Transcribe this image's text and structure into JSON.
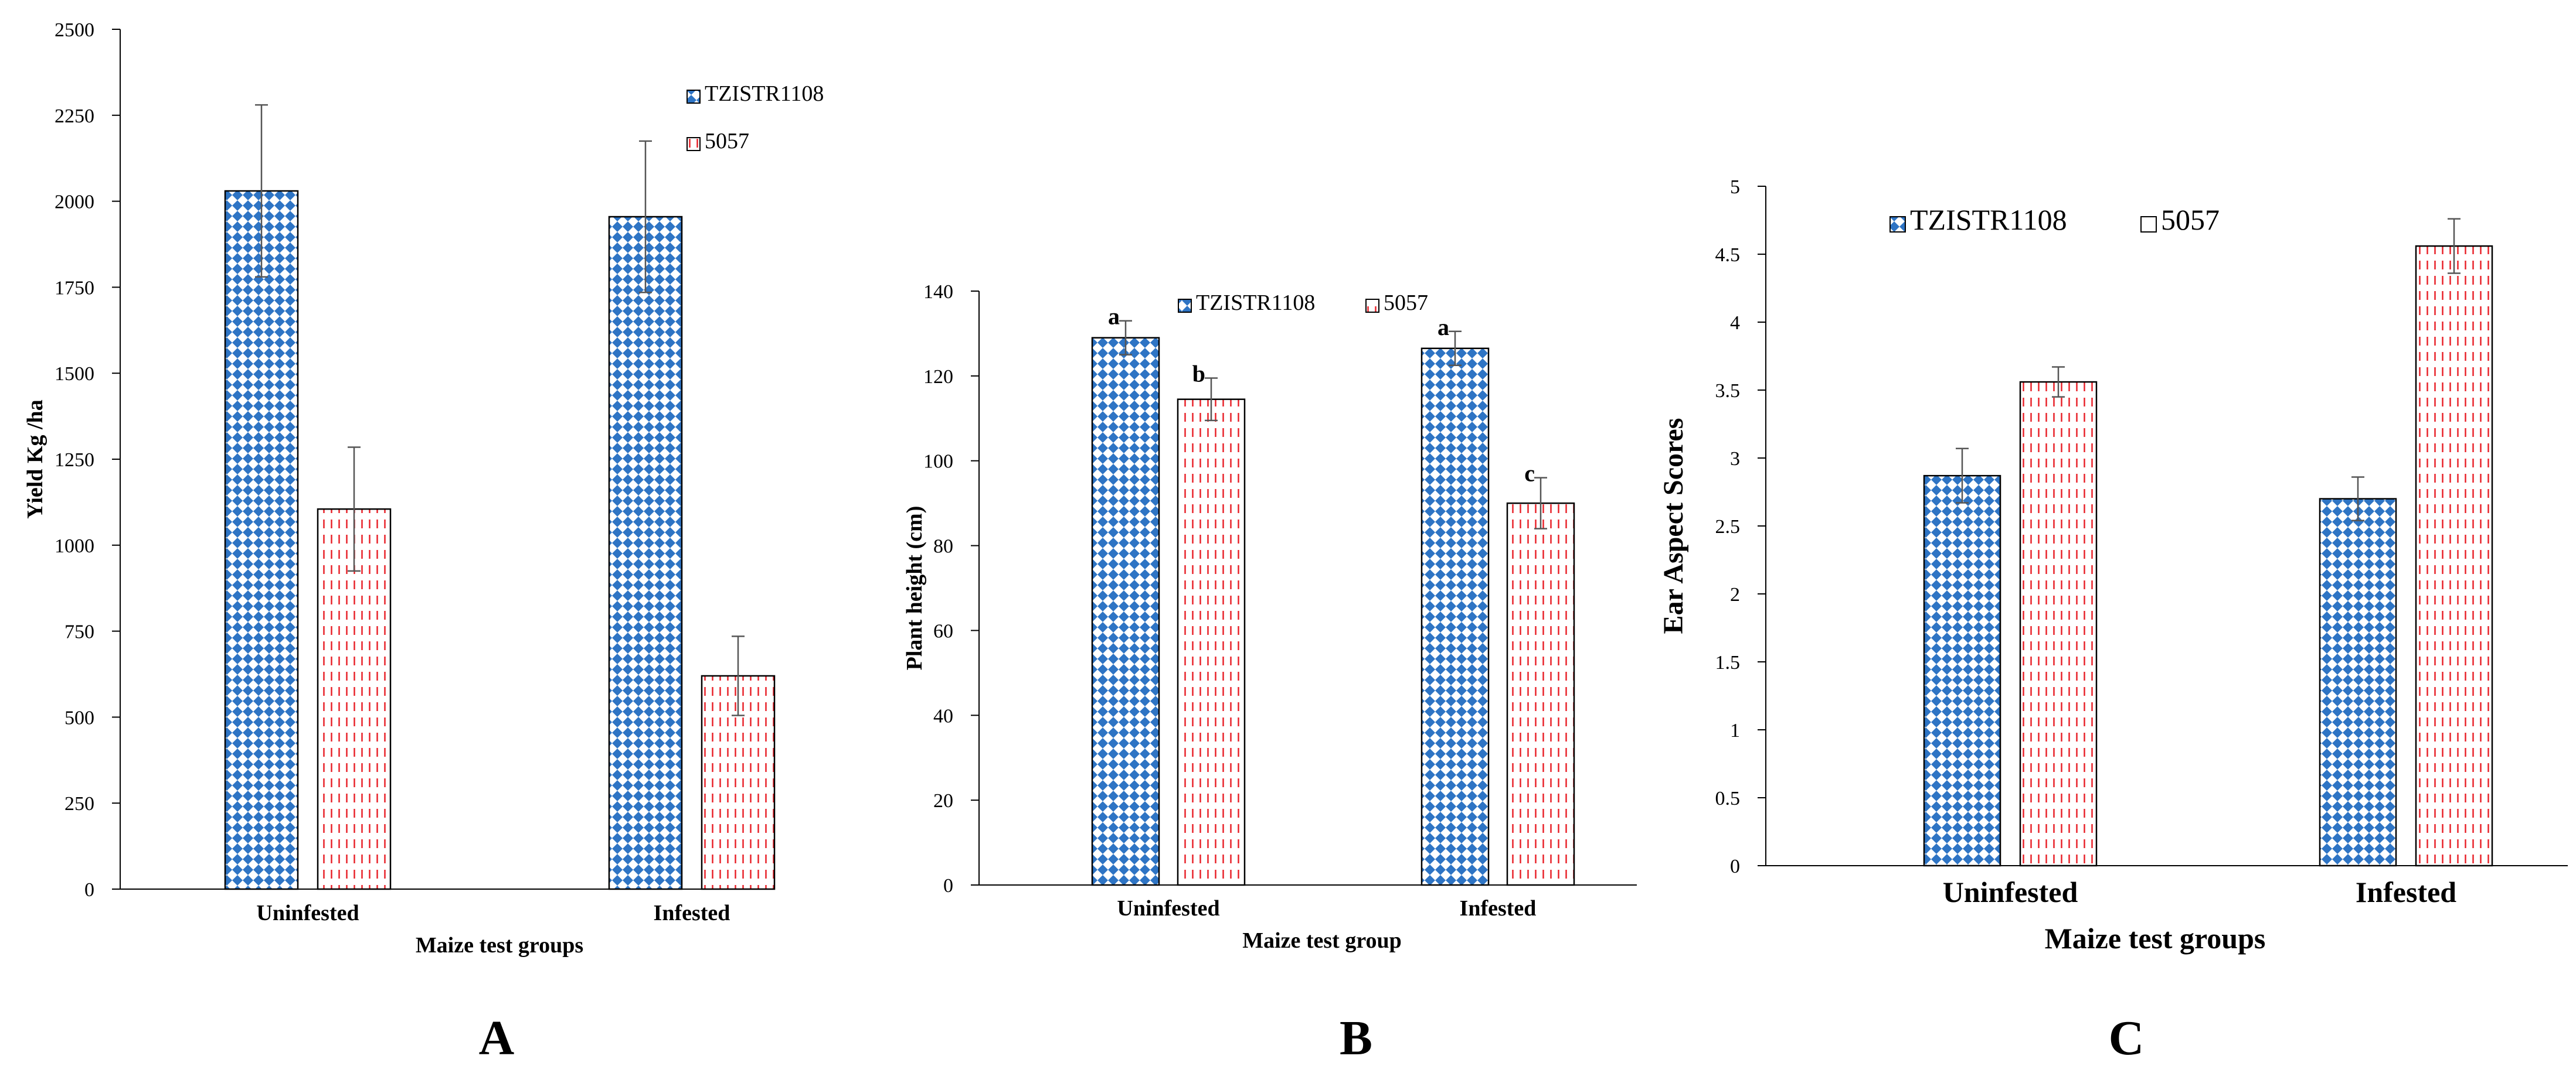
{
  "figure": {
    "panels": [
      "A",
      "B",
      "C"
    ]
  },
  "chart_data": [
    {
      "type": "bar",
      "panel": "A",
      "title": "",
      "xlabel": "Maize test groups",
      "ylabel": "Yield Kg /ha",
      "ylim": [
        0,
        2500
      ],
      "yticks": [
        0,
        250,
        500,
        750,
        1000,
        1250,
        1500,
        1750,
        2000,
        2250,
        2500
      ],
      "categories": [
        "Uninfested",
        "Infested"
      ],
      "legend_position": "top-right",
      "series": [
        {
          "name": "TZISTR1108",
          "values": [
            2030,
            1955
          ],
          "errors": [
            250,
            220
          ],
          "letters": [
            "",
            ""
          ]
        },
        {
          "name": "5057",
          "values": [
            1105,
            620
          ],
          "errors": [
            180,
            115
          ],
          "letters": [
            "",
            ""
          ]
        }
      ]
    },
    {
      "type": "bar",
      "panel": "B",
      "title": "",
      "xlabel": "Maize test group",
      "ylabel": "Plant height (cm)",
      "ylim": [
        0,
        140
      ],
      "yticks": [
        0,
        20,
        40,
        60,
        80,
        100,
        120,
        140
      ],
      "categories": [
        "Uninfested",
        "Infested"
      ],
      "legend_position": "top-right",
      "series": [
        {
          "name": "TZISTR1108",
          "values": [
            129,
            126.5
          ],
          "errors": [
            4,
            4
          ],
          "letters": [
            "a",
            "a"
          ]
        },
        {
          "name": "5057",
          "values": [
            114.5,
            90
          ],
          "errors": [
            5,
            6
          ],
          "letters": [
            "b",
            "c"
          ]
        }
      ]
    },
    {
      "type": "bar",
      "panel": "C",
      "title": "",
      "xlabel": "Maize test groups",
      "ylabel": "Ear Aspect Scores",
      "ylim": [
        0,
        5
      ],
      "yticks": [
        "0",
        "0.5",
        "1",
        "1.5",
        "2",
        "2.5",
        "3",
        "3.5",
        "4",
        "4.5",
        "5"
      ],
      "categories": [
        "Uninfested",
        "Infested"
      ],
      "legend_position": "top-left",
      "series": [
        {
          "name": "TZISTR1108",
          "values": [
            2.87,
            2.7
          ],
          "errors": [
            0.2,
            0.16
          ],
          "letters": [
            "",
            ""
          ]
        },
        {
          "name": "5057",
          "values": [
            3.56,
            4.56
          ],
          "errors": [
            0.11,
            0.2
          ],
          "letters": [
            "",
            ""
          ]
        }
      ]
    }
  ]
}
